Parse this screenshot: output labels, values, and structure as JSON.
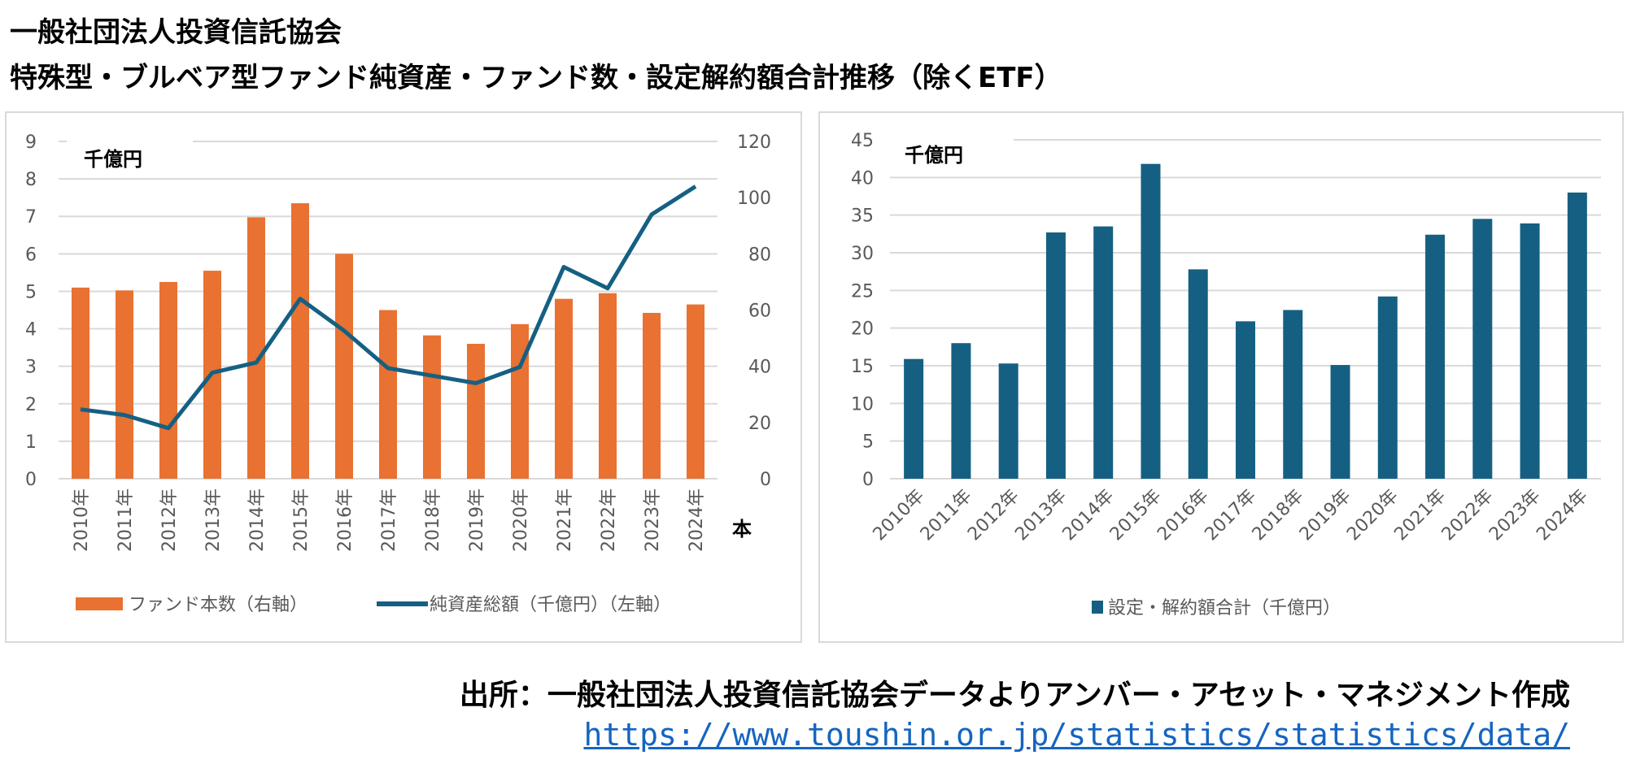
{
  "header": {
    "line1": "一般社団法人投資信託協会",
    "line2": "特殊型・ブルベア型ファンド純資産・ファンド数・設定解約額合計推移（除くETF）"
  },
  "footer": {
    "source": "出所：一般社団法人投資信託協会データよりアンバー・アセット・マネジメント作成",
    "link": "https://www.toushin.or.jp/statistics/statistics/data/"
  },
  "colors": {
    "orange": "#E97132",
    "blue": "#156082",
    "grid": "#d9d9d9"
  },
  "chart_data": [
    {
      "type": "bar+line",
      "unit_label": "千億円",
      "right_axis_unit": "本",
      "categories": [
        "2010年",
        "2011年",
        "2012年",
        "2013年",
        "2014年",
        "2015年",
        "2016年",
        "2017年",
        "2018年",
        "2019年",
        "2020年",
        "2021年",
        "2022年",
        "2023年",
        "2024年"
      ],
      "left_axis": {
        "range": [
          0,
          9
        ],
        "ticks": [
          "0",
          "1",
          "2",
          "3",
          "4",
          "5",
          "6",
          "7",
          "8",
          "9"
        ]
      },
      "right_axis": {
        "range": [
          0,
          120
        ],
        "ticks": [
          "0",
          "20",
          "40",
          "60",
          "80",
          "100",
          "120"
        ]
      },
      "series": [
        {
          "name": "ファンド本数（右軸）",
          "type": "bar",
          "axis": "right",
          "values": [
            68,
            67,
            70,
            74,
            93,
            98,
            80,
            60,
            51,
            48,
            55,
            64,
            66,
            59,
            62
          ]
        },
        {
          "name": "純資産総額（千億円）（左軸）",
          "type": "line",
          "axis": "left",
          "values": [
            1.85,
            1.7,
            1.35,
            2.83,
            3.1,
            4.8,
            3.95,
            2.95,
            2.75,
            2.55,
            2.98,
            5.65,
            5.08,
            7.05,
            7.8
          ]
        }
      ],
      "grid": true,
      "legend": "bottom"
    },
    {
      "type": "bar",
      "unit_label": "千億円",
      "categories": [
        "2010年",
        "2011年",
        "2012年",
        "2013年",
        "2014年",
        "2015年",
        "2016年",
        "2017年",
        "2018年",
        "2019年",
        "2020年",
        "2021年",
        "2022年",
        "2023年",
        "2024年"
      ],
      "y_axis": {
        "range": [
          0,
          45
        ],
        "ticks": [
          "0",
          "5",
          "10",
          "15",
          "20",
          "25",
          "30",
          "35",
          "40",
          "45"
        ]
      },
      "series": [
        {
          "name": "設定・解約額合計（千億円）",
          "values": [
            15.9,
            18.0,
            15.3,
            32.7,
            33.5,
            41.8,
            27.8,
            20.9,
            22.4,
            15.1,
            24.2,
            32.4,
            34.5,
            33.9,
            38.0
          ]
        }
      ],
      "grid": true,
      "legend": "bottom"
    }
  ]
}
